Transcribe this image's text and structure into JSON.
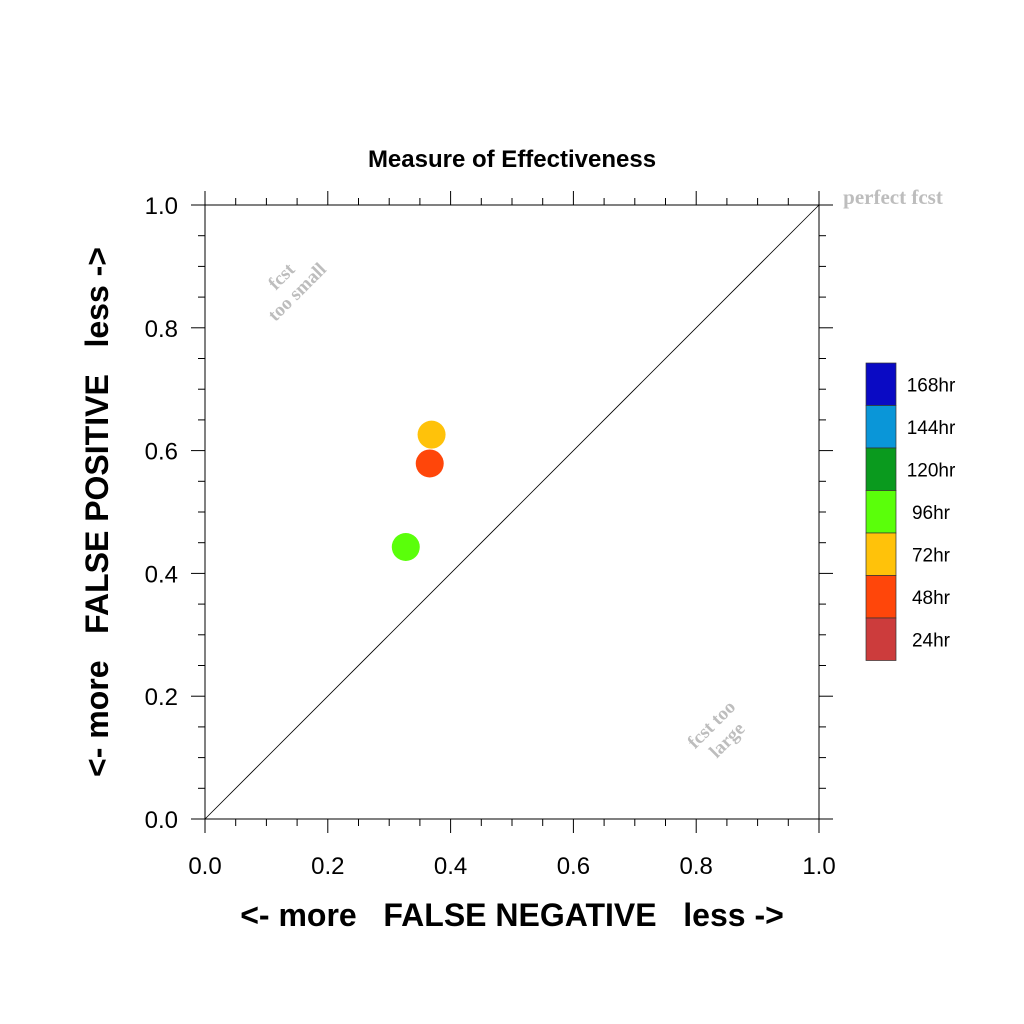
{
  "chart_data": {
    "type": "scatter",
    "title": "Measure of Effectiveness",
    "xlabel": "<- more   FALSE NEGATIVE   less ->",
    "ylabel": "<- more   FALSE POSITIVE   less ->",
    "xlim": [
      0.0,
      1.0
    ],
    "ylim": [
      0.0,
      1.0
    ],
    "xticks": [
      "0.0",
      "0.2",
      "0.4",
      "0.6",
      "0.8",
      "1.0"
    ],
    "yticks": [
      "0.0",
      "0.2",
      "0.4",
      "0.6",
      "0.8",
      "1.0"
    ],
    "grid": false,
    "diagonal_line": true,
    "annotations": {
      "perfect": "perfect fcst",
      "too_small_line1": "fcst",
      "too_small_line2": "too small",
      "too_large_line1": "fcst too",
      "too_large_line2": "large"
    },
    "legend": {
      "placement": "right",
      "entries": [
        {
          "label": "168hr",
          "color": "#0a0ac4"
        },
        {
          "label": "144hr",
          "color": "#0a96d8"
        },
        {
          "label": "120hr",
          "color": "#0a9a1e"
        },
        {
          "label": "96hr",
          "color": "#5aff0a"
        },
        {
          "label": "72hr",
          "color": "#ffc20a"
        },
        {
          "label": "48hr",
          "color": "#ff460a"
        },
        {
          "label": "24hr",
          "color": "#cc3c3c"
        }
      ]
    },
    "points": [
      {
        "series": "72hr",
        "x": 0.369,
        "y": 0.626,
        "color": "#ffc20a"
      },
      {
        "series": "48hr",
        "x": 0.366,
        "y": 0.579,
        "color": "#ff460a"
      },
      {
        "series": "96hr",
        "x": 0.327,
        "y": 0.443,
        "color": "#5aff0a"
      }
    ]
  }
}
